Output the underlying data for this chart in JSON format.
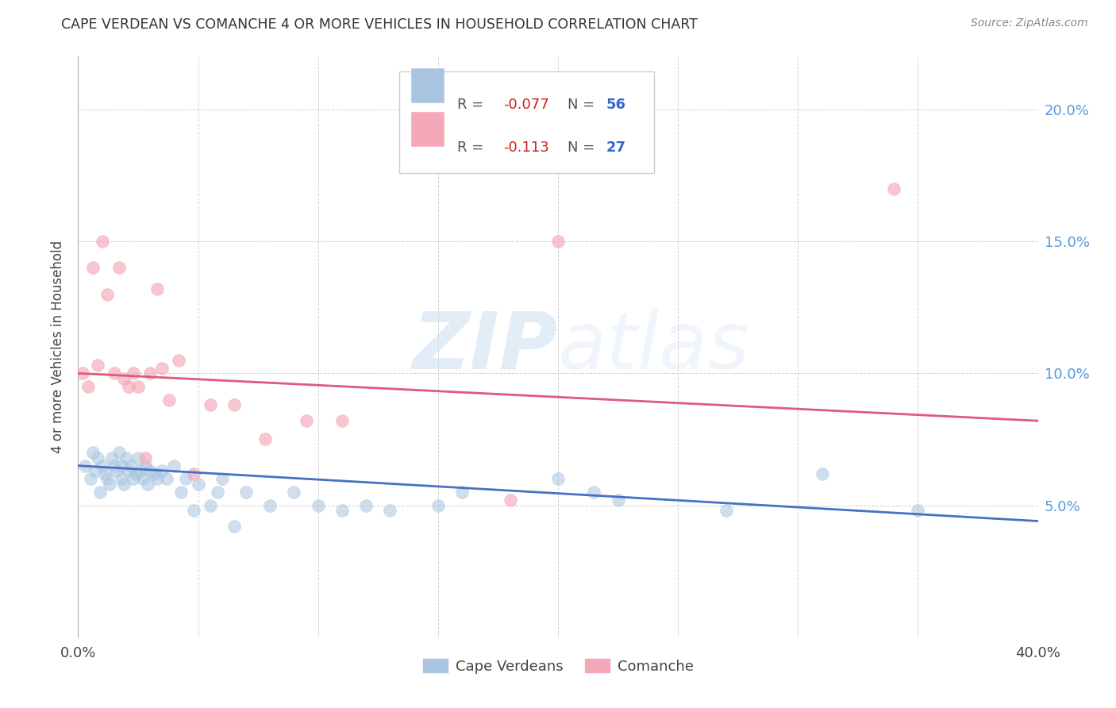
{
  "title": "CAPE VERDEAN VS COMANCHE 4 OR MORE VEHICLES IN HOUSEHOLD CORRELATION CHART",
  "source": "Source: ZipAtlas.com",
  "ylabel": "4 or more Vehicles in Household",
  "xlim": [
    0.0,
    0.4
  ],
  "ylim": [
    0.0,
    0.22
  ],
  "xticks": [
    0.0,
    0.05,
    0.1,
    0.15,
    0.2,
    0.25,
    0.3,
    0.35,
    0.4
  ],
  "yticks": [
    0.0,
    0.05,
    0.1,
    0.15,
    0.2
  ],
  "blue_color": "#a8c4e0",
  "pink_color": "#f4a8b8",
  "blue_line_color": "#4472c4",
  "pink_line_color": "#e05a7a",
  "watermark_zip": "ZIP",
  "watermark_atlas": "atlas",
  "cape_verdean_x": [
    0.003,
    0.005,
    0.006,
    0.007,
    0.008,
    0.009,
    0.01,
    0.011,
    0.012,
    0.013,
    0.014,
    0.015,
    0.016,
    0.017,
    0.018,
    0.018,
    0.019,
    0.02,
    0.021,
    0.022,
    0.023,
    0.024,
    0.025,
    0.026,
    0.027,
    0.028,
    0.029,
    0.03,
    0.032,
    0.033,
    0.035,
    0.037,
    0.04,
    0.043,
    0.045,
    0.048,
    0.05,
    0.055,
    0.058,
    0.06,
    0.065,
    0.07,
    0.08,
    0.09,
    0.1,
    0.11,
    0.12,
    0.13,
    0.15,
    0.16,
    0.2,
    0.215,
    0.225,
    0.27,
    0.31,
    0.35
  ],
  "cape_verdean_y": [
    0.065,
    0.06,
    0.07,
    0.063,
    0.068,
    0.055,
    0.065,
    0.062,
    0.06,
    0.058,
    0.068,
    0.065,
    0.063,
    0.07,
    0.065,
    0.06,
    0.058,
    0.068,
    0.063,
    0.065,
    0.06,
    0.062,
    0.068,
    0.063,
    0.06,
    0.065,
    0.058,
    0.063,
    0.062,
    0.06,
    0.063,
    0.06,
    0.065,
    0.055,
    0.06,
    0.048,
    0.058,
    0.05,
    0.055,
    0.06,
    0.042,
    0.055,
    0.05,
    0.055,
    0.05,
    0.048,
    0.05,
    0.048,
    0.05,
    0.055,
    0.06,
    0.055,
    0.052,
    0.048,
    0.062,
    0.048
  ],
  "comanche_x": [
    0.002,
    0.004,
    0.006,
    0.008,
    0.01,
    0.012,
    0.015,
    0.017,
    0.019,
    0.021,
    0.023,
    0.025,
    0.028,
    0.03,
    0.033,
    0.035,
    0.038,
    0.042,
    0.048,
    0.055,
    0.065,
    0.078,
    0.095,
    0.11,
    0.18,
    0.2,
    0.34
  ],
  "comanche_y": [
    0.1,
    0.095,
    0.14,
    0.103,
    0.15,
    0.13,
    0.1,
    0.14,
    0.098,
    0.095,
    0.1,
    0.095,
    0.068,
    0.1,
    0.132,
    0.102,
    0.09,
    0.105,
    0.062,
    0.088,
    0.088,
    0.075,
    0.082,
    0.082,
    0.052,
    0.15,
    0.17
  ]
}
